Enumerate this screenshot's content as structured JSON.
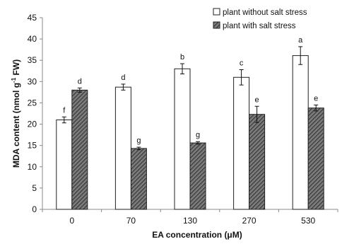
{
  "chart_data": {
    "type": "bar",
    "categories": [
      "0",
      "70",
      "130",
      "270",
      "530"
    ],
    "series": [
      {
        "name": "plant without salt stress",
        "values": [
          21.0,
          28.7,
          33.0,
          31.0,
          36.1
        ],
        "errors": [
          0.7,
          0.7,
          1.2,
          1.8,
          2.1
        ],
        "letters": [
          "f",
          "d",
          "b",
          "c",
          "a"
        ],
        "fill": "#ffffff",
        "pattern": "none"
      },
      {
        "name": "plant with salt stress",
        "values": [
          28.0,
          14.3,
          15.6,
          22.3,
          23.8
        ],
        "errors": [
          0.5,
          0.3,
          0.3,
          1.9,
          0.7
        ],
        "letters": [
          "d",
          "g",
          "g",
          "e",
          "e"
        ],
        "fill": "#555555",
        "pattern": "diagonal-hatch"
      }
    ],
    "xlabel": "EA concentration (μM)",
    "ylabel": {
      "prefix": "MDA content (nmol g",
      "sup": "-1",
      "suffix": " FW)"
    },
    "ylim": [
      0,
      45
    ],
    "yticks": [
      0,
      5,
      10,
      15,
      20,
      25,
      30,
      35,
      40,
      45
    ],
    "grid": false,
    "legend_position": "top-right"
  }
}
